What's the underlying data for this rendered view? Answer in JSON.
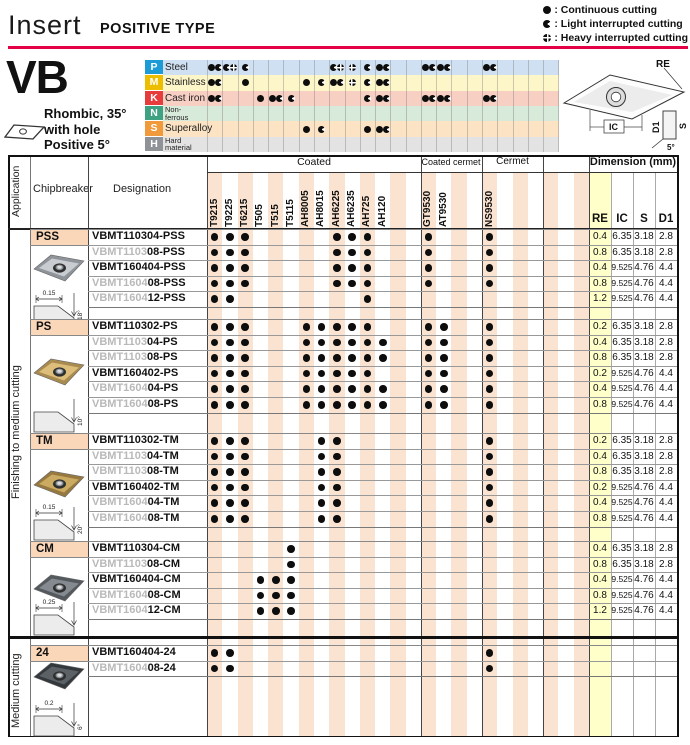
{
  "header": {
    "title": "Insert",
    "subtitle": "POSITIVE TYPE"
  },
  "legend": [
    {
      "mark": "C",
      "text": "Continuous cutting"
    },
    {
      "mark": "L",
      "text": "Light interrupted cutting"
    },
    {
      "mark": "H",
      "text": "Heavy interrupted cutting"
    }
  ],
  "product": {
    "code": "VB",
    "desc": [
      "Rhombic, 35°",
      "with hole",
      "Positive 5°"
    ]
  },
  "diagram": {
    "labels": {
      "re": "RE",
      "ic": "IC",
      "d1": "D1",
      "s": "S",
      "angle": "5°"
    }
  },
  "materials": {
    "rows": [
      {
        "code": "P",
        "name": "Steel",
        "box_color": "#1d9bd7",
        "row_color": "#cfe0f2",
        "marks": {
          "0": "CL",
          "1": "LH",
          "2": "L",
          "8": "LH",
          "9": "H",
          "10": "L",
          "11": "CL",
          "14": "CL",
          "15": "CL",
          "18": "CL"
        }
      },
      {
        "code": "M",
        "name": "Stainless",
        "box_color": "#edbe00",
        "row_color": "#fdf6c9",
        "marks": {
          "0": "CL",
          "2": "C",
          "6": "C",
          "7": "L",
          "8": "CL",
          "9": "H",
          "10": "L",
          "11": "CL"
        }
      },
      {
        "code": "K",
        "name": "Cast iron",
        "box_color": "#e63c3c",
        "row_color": "#f7cfc3",
        "marks": {
          "0": "CL",
          "3": "C",
          "4": "CL",
          "5": "L",
          "10": "L",
          "11": "CL",
          "14": "CL",
          "15": "CL",
          "18": "CL"
        }
      },
      {
        "code": "N",
        "name": "Non-\nferrous",
        "box_color": "#3ea182",
        "row_color": "#d8eada",
        "marks": {}
      },
      {
        "code": "S",
        "name": "Superalloy",
        "box_color": "#f09a3c",
        "row_color": "#fbe3c3",
        "marks": {
          "6": "C",
          "7": "L",
          "10": "C",
          "11": "CL"
        }
      },
      {
        "code": "H",
        "name": "Hard\nmaterial",
        "box_color": "#8f9397",
        "row_color": "#e3e3e3",
        "marks": {}
      }
    ]
  },
  "columns": {
    "groups": [
      {
        "label": "Coated",
        "span": 14
      },
      {
        "label": "Coated cermet",
        "span": 4
      },
      {
        "label": "Cermet",
        "span": 4
      },
      {
        "label": "",
        "span": 3
      }
    ],
    "grades": [
      {
        "idx": 0,
        "label": "T9215"
      },
      {
        "idx": 1,
        "label": "T9225"
      },
      {
        "idx": 2,
        "label": "T6215"
      },
      {
        "idx": 3,
        "label": "T505"
      },
      {
        "idx": 4,
        "label": "T515"
      },
      {
        "idx": 5,
        "label": "T5115"
      },
      {
        "idx": 6,
        "label": "AH8005"
      },
      {
        "idx": 7,
        "label": "AH8015"
      },
      {
        "idx": 8,
        "label": "AH6225"
      },
      {
        "idx": 9,
        "label": "AH6235"
      },
      {
        "idx": 10,
        "label": "AH725"
      },
      {
        "idx": 11,
        "label": "AH120"
      },
      {
        "idx": 14,
        "label": "GT9530"
      },
      {
        "idx": 15,
        "label": "AT9530"
      },
      {
        "idx": 18,
        "label": "NS9530"
      }
    ],
    "dims": [
      "RE",
      "IC",
      "S",
      "D1"
    ],
    "dimension_header": "Dimension (mm)"
  },
  "table": {
    "application_header": "Application",
    "chipbreaker_header": "Chipbreaker",
    "designation_header": "Designation",
    "applications": [
      {
        "label": "Finishing to medium cutting"
      },
      {
        "label": "Medium cutting"
      }
    ],
    "blocks": [
      {
        "label": "PSS",
        "drawing_dim": "0.15",
        "drawing_angle": "18°",
        "photo": [
          "#c9cdd1",
          "#8e9499"
        ],
        "rows": [
          {
            "pre": "",
            "main": "VBMT110304-PSS",
            "dots": [
              0,
              1,
              2,
              8,
              9,
              10,
              14,
              18
            ],
            "dims": [
              "0.4",
              "6.35",
              "3.18",
              "2.8"
            ]
          },
          {
            "pre": "VBMT1103",
            "main": "08-PSS",
            "dots": [
              0,
              1,
              2,
              8,
              9,
              10,
              14,
              18
            ],
            "dims": [
              "0.8",
              "6.35",
              "3.18",
              "2.8"
            ]
          },
          {
            "pre": "",
            "main": "VBMT160404-PSS",
            "dots": [
              0,
              1,
              2,
              8,
              9,
              10,
              14,
              18
            ],
            "dims": [
              "0.4",
              "9.525",
              "4.76",
              "4.4"
            ]
          },
          {
            "pre": "VBMT1604",
            "main": "08-PSS",
            "dots": [
              0,
              1,
              2,
              8,
              9,
              10,
              14,
              18
            ],
            "dims": [
              "0.8",
              "9.525",
              "4.76",
              "4.4"
            ]
          },
          {
            "pre": "VBMT1604",
            "main": "12-PSS",
            "dots": [
              0,
              1,
              10
            ],
            "dims": [
              "1.2",
              "9.525",
              "4.76",
              "4.4"
            ]
          }
        ]
      },
      {
        "label": "PS",
        "drawing_dim": "",
        "drawing_angle": "10°",
        "photo": [
          "#dcbd79",
          "#a98b4f"
        ],
        "rows": [
          {
            "pre": "",
            "main": "VBMT110302-PS",
            "dots": [
              0,
              1,
              2,
              6,
              7,
              8,
              9,
              10,
              14,
              15,
              18
            ],
            "dims": [
              "0.2",
              "6.35",
              "3.18",
              "2.8"
            ]
          },
          {
            "pre": "VBMT1103",
            "main": "04-PS",
            "dots": [
              0,
              1,
              2,
              6,
              7,
              8,
              9,
              10,
              11,
              14,
              15,
              18
            ],
            "dims": [
              "0.4",
              "6.35",
              "3.18",
              "2.8"
            ]
          },
          {
            "pre": "VBMT1103",
            "main": "08-PS",
            "dots": [
              0,
              1,
              2,
              6,
              7,
              8,
              9,
              10,
              11,
              14,
              15,
              18
            ],
            "dims": [
              "0.8",
              "6.35",
              "3.18",
              "2.8"
            ]
          },
          {
            "pre": "",
            "main": "VBMT160402-PS",
            "dots": [
              0,
              1,
              2,
              6,
              7,
              8,
              9,
              10,
              14,
              15,
              18
            ],
            "dims": [
              "0.2",
              "9.525",
              "4.76",
              "4.4"
            ]
          },
          {
            "pre": "VBMT1604",
            "main": "04-PS",
            "dots": [
              0,
              1,
              2,
              6,
              7,
              8,
              9,
              10,
              11,
              14,
              15,
              18
            ],
            "dims": [
              "0.4",
              "9.525",
              "4.76",
              "4.4"
            ]
          },
          {
            "pre": "VBMT1604",
            "main": "08-PS",
            "dots": [
              0,
              1,
              2,
              6,
              7,
              8,
              9,
              10,
              11,
              14,
              15,
              18
            ],
            "dims": [
              "0.8",
              "9.525",
              "4.76",
              "4.4"
            ]
          }
        ]
      },
      {
        "label": "TM",
        "drawing_dim": "0.15",
        "drawing_angle": "20°",
        "photo": [
          "#cbaa61",
          "#97793f"
        ],
        "rows": [
          {
            "pre": "",
            "main": "VBMT110302-TM",
            "dots": [
              0,
              1,
              2,
              7,
              8,
              18
            ],
            "dims": [
              "0.2",
              "6.35",
              "3.18",
              "2.8"
            ]
          },
          {
            "pre": "VBMT1103",
            "main": "04-TM",
            "dots": [
              0,
              1,
              2,
              7,
              8,
              18
            ],
            "dims": [
              "0.4",
              "6.35",
              "3.18",
              "2.8"
            ]
          },
          {
            "pre": "VBMT1103",
            "main": "08-TM",
            "dots": [
              0,
              1,
              2,
              7,
              8,
              18
            ],
            "dims": [
              "0.8",
              "6.35",
              "3.18",
              "2.8"
            ]
          },
          {
            "pre": "",
            "main": "VBMT160402-TM",
            "dots": [
              0,
              1,
              2,
              7,
              8,
              18
            ],
            "dims": [
              "0.2",
              "9.525",
              "4.76",
              "4.4"
            ]
          },
          {
            "pre": "VBMT1604",
            "main": "04-TM",
            "dots": [
              0,
              1,
              2,
              7,
              8,
              18
            ],
            "dims": [
              "0.4",
              "9.525",
              "4.76",
              "4.4"
            ]
          },
          {
            "pre": "VBMT1604",
            "main": "08-TM",
            "dots": [
              0,
              1,
              2,
              7,
              8,
              18
            ],
            "dims": [
              "0.8",
              "9.525",
              "4.76",
              "4.4"
            ]
          }
        ]
      },
      {
        "label": "CM",
        "drawing_dim": "0.25",
        "drawing_angle": "",
        "photo": [
          "#848a90",
          "#54595e"
        ],
        "rows": [
          {
            "pre": "",
            "main": "VBMT110304-CM",
            "dots": [
              5
            ],
            "dims": [
              "0.4",
              "6.35",
              "3.18",
              "2.8"
            ]
          },
          {
            "pre": "VBMT1103",
            "main": "08-CM",
            "dots": [
              5
            ],
            "dims": [
              "0.8",
              "6.35",
              "3.18",
              "2.8"
            ]
          },
          {
            "pre": "",
            "main": "VBMT160404-CM",
            "dots": [
              3,
              4,
              5
            ],
            "dims": [
              "0.4",
              "9.525",
              "4.76",
              "4.4"
            ]
          },
          {
            "pre": "VBMT1604",
            "main": "08-CM",
            "dots": [
              3,
              4,
              5
            ],
            "dims": [
              "0.8",
              "9.525",
              "4.76",
              "4.4"
            ]
          },
          {
            "pre": "VBMT1604",
            "main": "12-CM",
            "dots": [
              3,
              4,
              5
            ],
            "dims": [
              "1.2",
              "9.525",
              "4.76",
              "4.4"
            ]
          }
        ]
      },
      {
        "label": "24",
        "drawing_dim": "0.2",
        "drawing_angle": "6°",
        "photo": [
          "#5c6166",
          "#33383c"
        ],
        "rows": [
          {
            "pre": "",
            "main": "VBMT160404-24",
            "dots": [
              0,
              1,
              18
            ],
            "dims": [
              "",
              "",
              "",
              ""
            ]
          },
          {
            "pre": "VBMT1604",
            "main": "08-24",
            "dots": [
              0,
              1,
              18
            ],
            "dims": [
              "",
              "",
              "",
              ""
            ]
          }
        ]
      }
    ]
  }
}
